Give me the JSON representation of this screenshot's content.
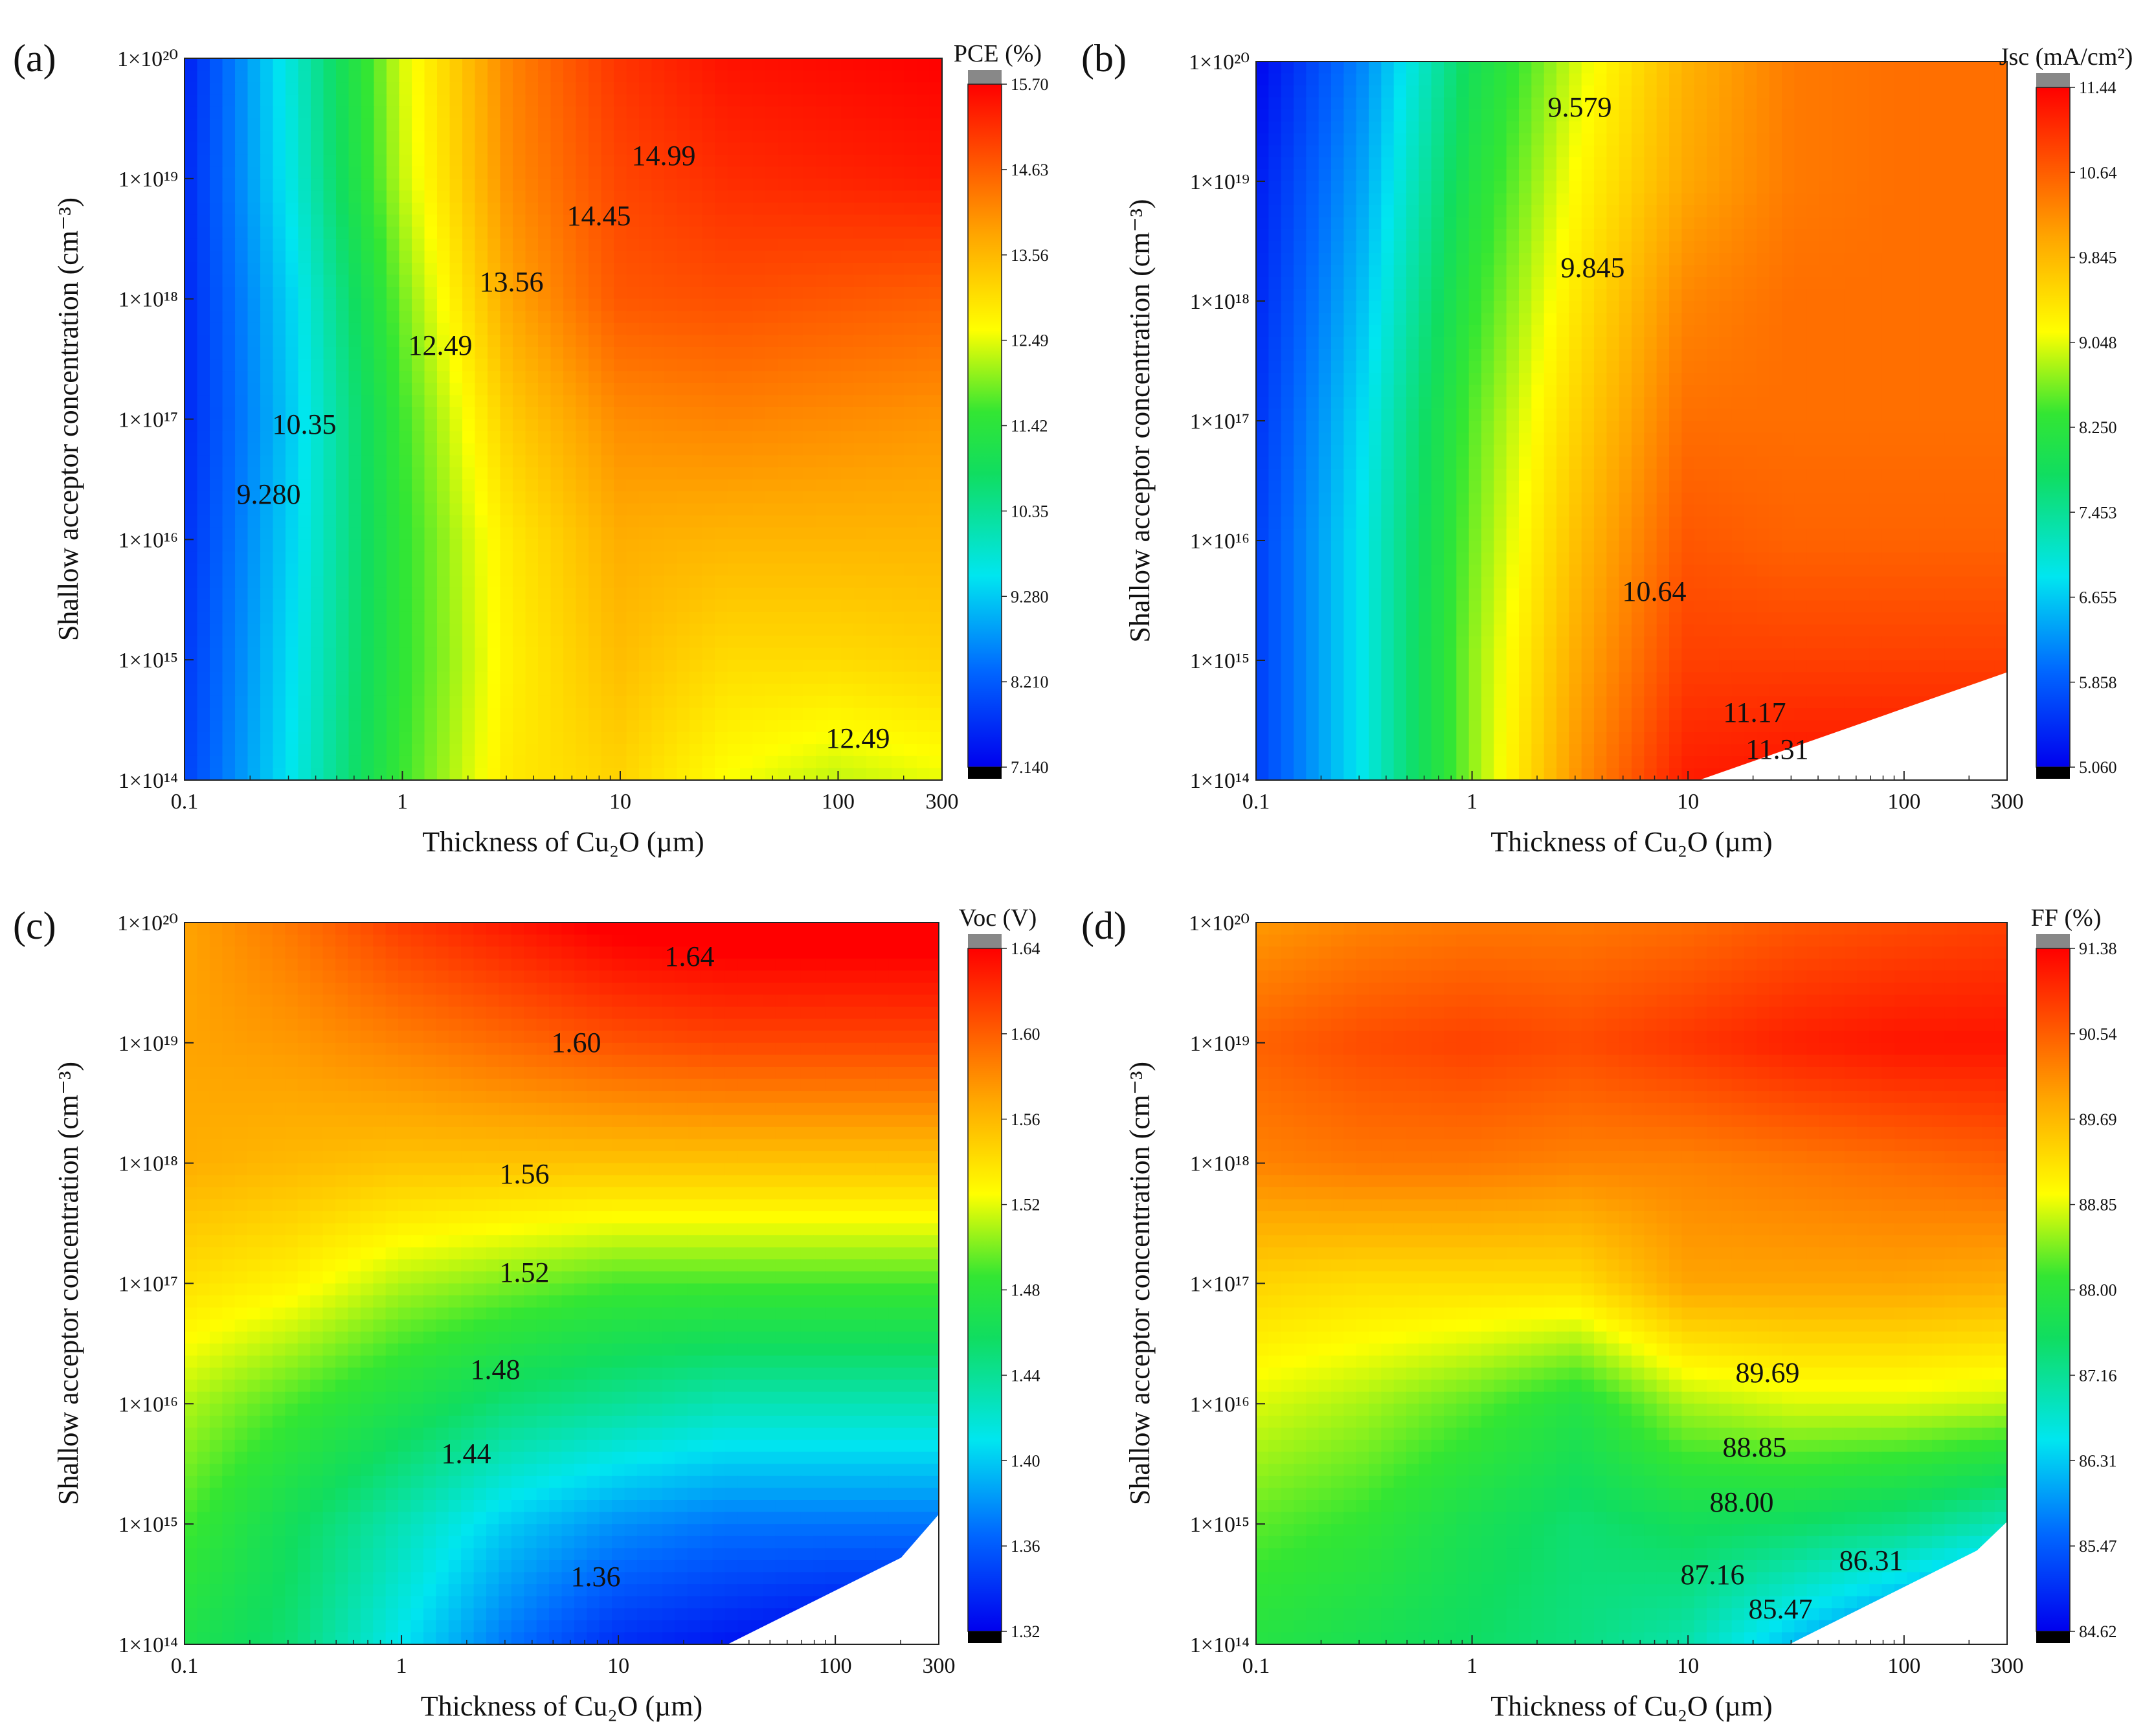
{
  "chart_data": [
    {
      "panel": "(a)",
      "type": "heatmap",
      "subtype": "filled-contour",
      "xlabel": "Thickness of Cu₂O (µm)",
      "ylabel": "Shallow acceptor concentration (cm⁻³)",
      "xscale": "log",
      "yscale": "log",
      "xlim": [
        0.1,
        300
      ],
      "ylim": [
        100000000000000.0,
        1e+20
      ],
      "xticks": [
        "0.1",
        "1",
        "10",
        "100",
        "300"
      ],
      "yticks": [
        "1×10¹⁴",
        "1×10¹⁵",
        "1×10¹⁶",
        "1×10¹⁷",
        "1×10¹⁸",
        "1×10¹⁹",
        "1×10²⁰"
      ],
      "colorbar": {
        "title": "PCE (%)",
        "ticks": [
          "15.70",
          "14.63",
          "13.56",
          "12.49",
          "11.42",
          "10.35",
          "9.280",
          "8.210",
          "7.140"
        ],
        "range": [
          7.14,
          15.7
        ]
      },
      "contour_labels": [
        "14.99",
        "14.45",
        "13.56",
        "12.49",
        "10.35",
        "9.280",
        "12.49"
      ],
      "grid_x": [
        0.1,
        0.3,
        1,
        3,
        10,
        30,
        100,
        300
      ],
      "grid_y": [
        100000000000000.0,
        1000000000000000.0,
        1e+16,
        1e+17,
        1e+18,
        1e+19,
        1e+20
      ],
      "values": [
        [
          7.9,
          9.6,
          11.6,
          12.9,
          13.2,
          12.6,
          12.3,
          12.5
        ],
        [
          7.8,
          9.5,
          11.5,
          12.8,
          13.5,
          13.1,
          13.1,
          13.2
        ],
        [
          7.7,
          9.4,
          11.5,
          12.9,
          13.7,
          13.6,
          13.6,
          13.6
        ],
        [
          7.6,
          9.3,
          11.6,
          13.3,
          14.1,
          14.2,
          14.1,
          14.0
        ],
        [
          7.6,
          9.4,
          11.9,
          13.8,
          14.7,
          14.8,
          14.7,
          14.6
        ],
        [
          7.6,
          9.7,
          12.3,
          14.1,
          14.9,
          15.2,
          15.3,
          15.4
        ],
        [
          7.5,
          9.8,
          12.4,
          14.2,
          15.1,
          15.5,
          15.6,
          15.7
        ]
      ]
    },
    {
      "panel": "(b)",
      "type": "heatmap",
      "subtype": "filled-contour",
      "xlabel": "Thickness of Cu₂O (µm)",
      "ylabel": "Shallow acceptor concentration (cm⁻³)",
      "xscale": "log",
      "yscale": "log",
      "xlim": [
        0.1,
        300
      ],
      "ylim": [
        100000000000000.0,
        1e+20
      ],
      "xticks": [
        "0.1",
        "1",
        "10",
        "100",
        "300"
      ],
      "yticks": [
        "1×10¹⁴",
        "1×10¹⁵",
        "1×10¹⁶",
        "1×10¹⁷",
        "1×10¹⁸",
        "1×10¹⁹",
        "1×10²⁰"
      ],
      "colorbar": {
        "title": "Jsc (mA/cm²)",
        "ticks": [
          "11.44",
          "10.64",
          "9.845",
          "9.048",
          "8.250",
          "7.453",
          "6.655",
          "5.858",
          "5.060"
        ],
        "range": [
          5.06,
          11.44
        ]
      },
      "contour_labels": [
        "9.579",
        "9.845",
        "10.64",
        "11.17",
        "11.31"
      ],
      "grid_x": [
        0.1,
        0.3,
        1,
        3,
        10,
        30,
        100,
        300
      ],
      "grid_y": [
        100000000000000.0,
        1000000000000000.0,
        1e+16,
        1e+17,
        1e+18,
        1e+19,
        1e+20
      ],
      "values": [
        [
          5.6,
          6.9,
          8.7,
          10.2,
          11.2,
          11.3,
          11.3,
          11.3
        ],
        [
          5.6,
          6.9,
          8.7,
          10.0,
          10.9,
          10.9,
          10.9,
          10.9
        ],
        [
          5.6,
          6.9,
          8.6,
          9.8,
          10.7,
          10.6,
          10.6,
          10.6
        ],
        [
          5.5,
          6.8,
          8.5,
          9.6,
          10.5,
          10.5,
          10.5,
          10.5
        ],
        [
          5.4,
          6.6,
          8.3,
          9.4,
          10.3,
          10.5,
          10.5,
          10.5
        ],
        [
          5.3,
          6.4,
          8.1,
          9.2,
          10.0,
          10.4,
          10.5,
          10.5
        ],
        [
          5.1,
          6.2,
          7.9,
          9.0,
          9.9,
          10.4,
          10.5,
          10.5
        ]
      ]
    },
    {
      "panel": "(c)",
      "type": "heatmap",
      "subtype": "filled-contour",
      "xlabel": "Thickness of Cu₂O (µm)",
      "ylabel": "Shallow acceptor concentration (cm⁻³)",
      "xscale": "log",
      "yscale": "log",
      "xlim": [
        0.1,
        300
      ],
      "ylim": [
        100000000000000.0,
        1e+20
      ],
      "xticks": [
        "0.1",
        "1",
        "10",
        "100",
        "300"
      ],
      "yticks": [
        "1×10¹⁴",
        "1×10¹⁵",
        "1×10¹⁶",
        "1×10¹⁷",
        "1×10¹⁸",
        "1×10¹⁹",
        "1×10²⁰"
      ],
      "colorbar": {
        "title": "Voc (V)",
        "ticks": [
          "1.64",
          "1.60",
          "1.56",
          "1.52",
          "1.48",
          "1.44",
          "1.40",
          "1.36",
          "1.32"
        ],
        "range": [
          1.32,
          1.64
        ]
      },
      "contour_labels": [
        "1.64",
        "1.60",
        "1.56",
        "1.52",
        "1.48",
        "1.44",
        "1.36"
      ],
      "grid_x": [
        0.1,
        0.3,
        1,
        3,
        10,
        30,
        100,
        300
      ],
      "grid_y": [
        100000000000000.0,
        1000000000000000.0,
        1e+16,
        1e+17,
        1e+18,
        1e+19,
        1e+20
      ],
      "values": [
        [
          1.47,
          1.45,
          1.41,
          1.37,
          1.34,
          1.33,
          1.32,
          1.32
        ],
        [
          1.49,
          1.46,
          1.43,
          1.4,
          1.38,
          1.37,
          1.37,
          1.37
        ],
        [
          1.51,
          1.49,
          1.47,
          1.45,
          1.44,
          1.43,
          1.43,
          1.43
        ],
        [
          1.54,
          1.53,
          1.51,
          1.5,
          1.49,
          1.49,
          1.49,
          1.49
        ],
        [
          1.565,
          1.56,
          1.555,
          1.555,
          1.555,
          1.555,
          1.555,
          1.555
        ],
        [
          1.57,
          1.575,
          1.585,
          1.595,
          1.605,
          1.61,
          1.61,
          1.61
        ],
        [
          1.57,
          1.59,
          1.615,
          1.63,
          1.645,
          1.65,
          1.65,
          1.65
        ]
      ]
    },
    {
      "panel": "(d)",
      "type": "heatmap",
      "subtype": "filled-contour",
      "xlabel": "Thickness of Cu₂O (µm)",
      "ylabel": "Shallow acceptor concentration (cm⁻³)",
      "xscale": "log",
      "yscale": "log",
      "xlim": [
        0.1,
        300
      ],
      "ylim": [
        100000000000000.0,
        1e+20
      ],
      "xticks": [
        "0.1",
        "1",
        "10",
        "100",
        "300"
      ],
      "yticks": [
        "1×10¹⁴",
        "1×10¹⁵",
        "1×10¹⁶",
        "1×10¹⁷",
        "1×10¹⁸",
        "1×10¹⁹",
        "1×10²⁰"
      ],
      "colorbar": {
        "title": "FF (%)",
        "ticks": [
          "91.38",
          "90.54",
          "89.69",
          "88.85",
          "88.00",
          "87.16",
          "86.31",
          "85.47",
          "84.62"
        ],
        "range": [
          84.62,
          91.38
        ]
      },
      "contour_labels": [
        "89.69",
        "88.85",
        "88.00",
        "87.16",
        "86.31",
        "85.47"
      ],
      "grid_x": [
        0.1,
        0.3,
        1,
        3,
        10,
        30,
        100,
        300
      ],
      "grid_y": [
        100000000000000.0,
        1000000000000000.0,
        1e+16,
        1e+17,
        1e+18,
        1e+19,
        1e+20
      ],
      "values": [
        [
          87.9,
          87.7,
          87.5,
          87.3,
          87.0,
          86.2,
          85.5,
          84.9
        ],
        [
          88.3,
          88.1,
          87.7,
          87.4,
          87.6,
          87.5,
          87.3,
          86.9
        ],
        [
          88.8,
          88.6,
          88.3,
          87.9,
          88.6,
          88.8,
          88.8,
          88.7
        ],
        [
          89.4,
          89.3,
          89.3,
          89.3,
          89.9,
          89.9,
          89.9,
          89.8
        ],
        [
          90.2,
          90.3,
          90.3,
          90.2,
          90.2,
          90.3,
          90.4,
          90.5
        ],
        [
          90.5,
          90.7,
          90.8,
          90.7,
          90.9,
          91.1,
          91.2,
          91.2
        ],
        [
          90.0,
          90.2,
          90.3,
          90.3,
          90.4,
          90.6,
          90.7,
          90.8
        ]
      ]
    }
  ]
}
